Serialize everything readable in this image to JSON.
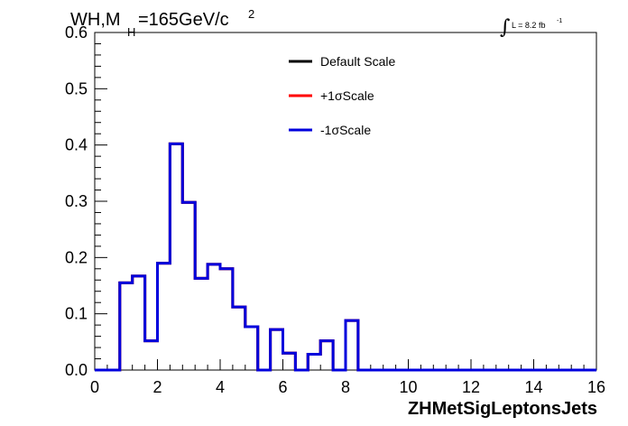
{
  "chart_data": {
    "type": "histogram",
    "title": {
      "main_prefix": "WH,M",
      "subscript": "H",
      "main_suffix": "=165GeV/c",
      "superscript": "2"
    },
    "lumi": {
      "integral_symbol": "∫",
      "text": "L = 8.2 fb",
      "superscript": "-1"
    },
    "xlabel": "ZHMetSigLeptonsJets",
    "ylabel": "",
    "xlim": [
      0,
      16
    ],
    "ylim": [
      0,
      0.6
    ],
    "x_ticks": [
      0,
      2,
      4,
      6,
      8,
      10,
      12,
      14,
      16
    ],
    "x_tick_labels": [
      "0",
      "2",
      "4",
      "6",
      "8",
      "10",
      "12",
      "14",
      "16"
    ],
    "y_ticks": [
      0,
      0.1,
      0.2,
      0.3,
      0.4,
      0.5,
      0.6
    ],
    "y_tick_labels": [
      "0.0",
      "0.1",
      "0.2",
      "0.3",
      "0.4",
      "0.5",
      "0.6"
    ],
    "bin_width": 0.4,
    "bin_edges_start": 0,
    "series": [
      {
        "name": "Default Scale",
        "color": "#000000",
        "values": [
          0,
          0,
          0.155,
          0.167,
          0.052,
          0.19,
          0.402,
          0.298,
          0.163,
          0.188,
          0.18,
          0.112,
          0.077,
          0,
          0.072,
          0.03,
          0,
          0.028,
          0.052,
          0,
          0.088,
          0,
          0,
          0,
          0,
          0,
          0,
          0,
          0,
          0,
          0,
          0,
          0,
          0,
          0,
          0,
          0,
          0,
          0,
          0
        ]
      },
      {
        "name": "+1σScale",
        "color": "#ff0000",
        "values": [
          0,
          0,
          0.155,
          0.167,
          0.052,
          0.19,
          0.402,
          0.298,
          0.163,
          0.188,
          0.18,
          0.112,
          0.077,
          0,
          0.072,
          0.03,
          0,
          0.028,
          0.052,
          0,
          0.088,
          0,
          0,
          0,
          0,
          0,
          0,
          0,
          0,
          0,
          0,
          0,
          0,
          0,
          0,
          0,
          0,
          0,
          0,
          0
        ]
      },
      {
        "name": "-1σScale",
        "color": "#0000dd",
        "values": [
          0,
          0,
          0.155,
          0.167,
          0.052,
          0.19,
          0.402,
          0.298,
          0.163,
          0.188,
          0.18,
          0.112,
          0.077,
          0,
          0.072,
          0.03,
          0,
          0.028,
          0.052,
          0,
          0.088,
          0,
          0,
          0,
          0,
          0,
          0,
          0,
          0,
          0,
          0,
          0,
          0,
          0,
          0,
          0,
          0,
          0,
          0,
          0
        ]
      }
    ],
    "legend": {
      "placement": "top-center",
      "entries": [
        {
          "label": "Default Scale",
          "color": "#000000"
        },
        {
          "label": "+1σScale",
          "color": "#ff0000"
        },
        {
          "label": "-1σScale",
          "color": "#0000dd"
        }
      ]
    },
    "grid": false
  }
}
